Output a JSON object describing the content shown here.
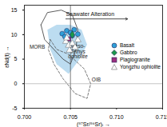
{
  "chart_data": {
    "type": "scatter",
    "x_label": "(⁸⁷Sr/⁸⁶Sr)ᵢ",
    "y_label": "εNd(t)",
    "xlim": [
      0.7,
      0.715
    ],
    "xticks": [
      {
        "value": 0.7,
        "label": "0.700"
      },
      {
        "value": 0.705,
        "label": "0.705"
      },
      {
        "value": 0.71,
        "label": "0.710"
      },
      {
        "value": 0.715,
        "label": "0.715"
      }
    ],
    "ylim": [
      -5,
      16
    ],
    "yticks": [
      -5,
      0,
      5,
      10,
      15
    ],
    "grid": false,
    "legend": "right",
    "reference_lines": {
      "x": 0.705,
      "y": 0
    },
    "annotations": [
      {
        "text": "Seawater Alteration",
        "x": 0.7045,
        "x2": 0.7112,
        "y": 13.2
      }
    ],
    "regions": [
      {
        "name": "Meso-Tethys ophiolite",
        "type": "area",
        "color": "#bcdcf0",
        "label_x": 0.7058,
        "label_y": 6.5,
        "x": [
          0.7025,
          0.7035,
          0.705,
          0.7062,
          0.7068,
          0.706,
          0.7048,
          0.7035,
          0.7028
        ],
        "y": [
          11,
          12,
          12,
          11,
          8,
          5,
          2,
          4,
          7
        ]
      },
      {
        "name": "OIB",
        "type": "line",
        "color": "#555555",
        "line_style": "dashed",
        "label_x": 0.7078,
        "label_y": 0.8,
        "x": [
          0.7028,
          0.7035,
          0.7048,
          0.7065,
          0.7072,
          0.7068,
          0.7055,
          0.7042,
          0.7032,
          0.7026
        ],
        "y": [
          9,
          7,
          6,
          3,
          0,
          -3,
          -2,
          1,
          4,
          7
        ]
      },
      {
        "name": "MORB",
        "type": "line",
        "color": "#333333",
        "line_style": "solid",
        "label_x": 0.7014,
        "label_y": 7.5,
        "x": [
          0.7018,
          0.7025,
          0.704,
          0.7052,
          0.7058,
          0.7056,
          0.705,
          0.7042,
          0.7032,
          0.7022
        ],
        "y": [
          12,
          14.5,
          15,
          14,
          11,
          7,
          4,
          5,
          7,
          9
        ]
      }
    ],
    "series": [
      {
        "name": "Basalt",
        "color": "#2f9fd8",
        "marker": "circle",
        "x": [
          0.7041,
          0.7046,
          0.705,
          0.7054,
          0.7058,
          0.7044,
          0.7052
        ],
        "y": [
          10.2,
          10.8,
          10.4,
          11.0,
          10.1,
          9.6,
          9.8
        ]
      },
      {
        "name": "Gabbro",
        "color": "#1a9a4a",
        "marker": "diamond",
        "x": [
          0.7052
        ],
        "y": [
          10.0
        ]
      },
      {
        "name": "Plagiogranite",
        "color": "#9c2f80",
        "marker": "square",
        "x": [
          0.7048
        ],
        "y": [
          9.1
        ]
      },
      {
        "name": "Yongzhu ophiolite",
        "color": "#ffffff",
        "marker": "triangle",
        "x": [
          0.7045,
          0.7048,
          0.7052,
          0.7055,
          0.7049,
          0.7058,
          0.7046
        ],
        "y": [
          8.6,
          7.8,
          8.2,
          7.4,
          6.8,
          8.9,
          9.3
        ]
      }
    ]
  }
}
